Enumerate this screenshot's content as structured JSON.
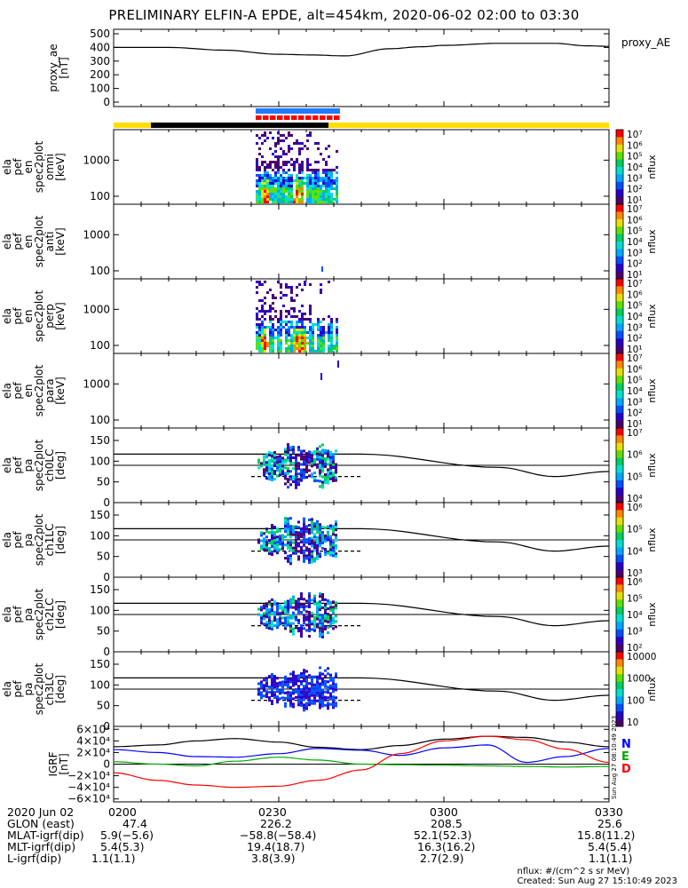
{
  "title": "PRELIMINARY ELFIN-A EPDE, alt=454km, 2020-06-02 02:00 to 03:30",
  "chart_data": [
    {
      "type": "line",
      "id": "proxy_ae",
      "ylabel": [
        "proxy_ae",
        "[nT]"
      ],
      "legend": "proxy_AE",
      "yticks": [
        "500",
        "400",
        "300",
        "200",
        "100",
        "0"
      ],
      "ylim": [
        0,
        520
      ],
      "x_minutes": [
        0,
        10,
        20,
        30,
        36,
        42,
        50,
        56,
        60,
        70,
        80,
        86,
        90
      ],
      "values": [
        400,
        400,
        380,
        350,
        345,
        338,
        390,
        405,
        415,
        430,
        430,
        412,
        408
      ]
    },
    {
      "type": "heatmap",
      "id": "pef_en_spec2plot_omni",
      "ylabel": [
        "ela",
        "pef",
        "en",
        "spec2plot",
        "omni",
        "[keV]"
      ],
      "yticks": [
        "1000",
        "100"
      ],
      "ylim": [
        60,
        7000
      ],
      "colorbar_ticks": [
        "10⁷",
        "10⁶",
        "10⁵",
        "10⁴",
        "10³",
        "10²",
        "10¹"
      ],
      "colorbar_label": "nflux"
    },
    {
      "type": "heatmap",
      "id": "pef_en_spec2plot_anti",
      "ylabel": [
        "ela",
        "pef",
        "en",
        "spec2plot",
        "anti",
        "[keV]"
      ],
      "yticks": [
        "1000",
        "100"
      ],
      "ylim": [
        60,
        7000
      ],
      "colorbar_ticks": [
        "10⁷",
        "10⁶",
        "10⁵",
        "10⁴",
        "10³",
        "10²",
        "10¹"
      ],
      "colorbar_label": "nflux"
    },
    {
      "type": "heatmap",
      "id": "pef_en_spec2plot_perp",
      "ylabel": [
        "ela",
        "pef",
        "en",
        "spec2plot",
        "perp",
        "[keV]"
      ],
      "yticks": [
        "1000",
        "100"
      ],
      "ylim": [
        60,
        7000
      ],
      "colorbar_ticks": [
        "10⁷",
        "10⁶",
        "10⁵",
        "10⁴",
        "10³",
        "10²",
        "10¹"
      ],
      "colorbar_label": "nflux"
    },
    {
      "type": "heatmap",
      "id": "pef_en_spec2plot_para",
      "ylabel": [
        "ela",
        "pef",
        "en",
        "spec2plot",
        "para",
        "[keV]"
      ],
      "yticks": [
        "1000",
        "100"
      ],
      "ylim": [
        60,
        7000
      ],
      "colorbar_ticks": [
        "10⁷",
        "10⁶",
        "10⁵",
        "10⁴",
        "10³",
        "10²",
        "10¹"
      ],
      "colorbar_label": "nflux"
    },
    {
      "type": "heatmap",
      "id": "pef_pa_spec2plot_ch0LC",
      "ylabel": [
        "ela",
        "pef",
        "pa",
        "spec2plot",
        "ch0LC",
        "[deg]"
      ],
      "yticks": [
        "150",
        "100",
        "50",
        "0"
      ],
      "ylim": [
        0,
        180
      ],
      "colorbar_ticks": [
        "10⁷",
        "10⁶",
        "10⁵",
        "10⁴"
      ],
      "colorbar_label": "nflux",
      "lc_x_minutes": [
        0,
        10,
        30,
        45,
        70,
        80,
        90
      ],
      "lc_values": [
        117,
        117,
        117,
        117,
        85,
        63,
        75
      ]
    },
    {
      "type": "heatmap",
      "id": "pef_pa_spec2plot_ch1LC",
      "ylabel": [
        "ela",
        "pef",
        "pa",
        "spec2plot",
        "ch1LC",
        "[deg]"
      ],
      "yticks": [
        "150",
        "100",
        "50",
        "0"
      ],
      "ylim": [
        0,
        180
      ],
      "colorbar_ticks": [
        "10⁶",
        "10⁵",
        "10⁴",
        "10³"
      ],
      "colorbar_label": "nflux"
    },
    {
      "type": "heatmap",
      "id": "pef_pa_spec2plot_ch2LC",
      "ylabel": [
        "ela",
        "pef",
        "pa",
        "spec2plot",
        "ch2LC",
        "[deg]"
      ],
      "yticks": [
        "150",
        "100",
        "50",
        "0"
      ],
      "ylim": [
        0,
        180
      ],
      "colorbar_ticks": [
        "10⁶",
        "10⁵",
        "10⁴",
        "10³",
        "10²"
      ],
      "colorbar_label": "nflux"
    },
    {
      "type": "heatmap",
      "id": "pef_pa_spec2plot_ch3LC",
      "ylabel": [
        "ela",
        "pef",
        "pa",
        "spec2plot",
        "ch3LC",
        "[deg]"
      ],
      "yticks": [
        "150",
        "100",
        "50",
        "0"
      ],
      "ylim": [
        0,
        180
      ],
      "colorbar_ticks": [
        "10000",
        "1000",
        "100",
        "10"
      ],
      "colorbar_label": "nflux"
    },
    {
      "type": "line",
      "id": "igrf",
      "ylabel": [
        "IGRF",
        "[nT]"
      ],
      "yticks": [
        "6×10⁴",
        "4×10⁴",
        "2×10⁴",
        "0",
        "−2×10⁴",
        "−4×10⁴",
        "−6×10⁴"
      ],
      "ylim": [
        -65000,
        65000
      ],
      "legend": [
        "N",
        "E",
        "D"
      ],
      "legend_colors": [
        "#0000ff",
        "#00aa00",
        "#ff0000"
      ],
      "stamp": "Sun Aug 27 08:10:49 2023",
      "series": [
        {
          "name": "total",
          "color": "#000000",
          "x_minutes": [
            0,
            8,
            15,
            22,
            30,
            37,
            45,
            52,
            60,
            68,
            75,
            82,
            90
          ],
          "values": [
            30000,
            33000,
            40000,
            44000,
            38000,
            29000,
            25000,
            32000,
            43000,
            48000,
            46000,
            38000,
            30000
          ]
        },
        {
          "name": "N",
          "color": "#0000ff",
          "x_minutes": [
            0,
            8,
            15,
            22,
            30,
            37,
            45,
            52,
            60,
            68,
            75,
            82,
            90
          ],
          "values": [
            25000,
            20000,
            13000,
            12000,
            18000,
            27000,
            24000,
            15000,
            28000,
            33000,
            3000,
            13000,
            27000
          ]
        },
        {
          "name": "E",
          "color": "#00aa00",
          "x_minutes": [
            0,
            8,
            15,
            22,
            30,
            37,
            45,
            52,
            60,
            68,
            75,
            82,
            90
          ],
          "values": [
            4000,
            0,
            -3000,
            5000,
            12000,
            7000,
            0,
            -1000,
            -2000,
            -3000,
            -4000,
            -5000,
            -4000
          ]
        },
        {
          "name": "D",
          "color": "#ff0000",
          "x_minutes": [
            0,
            8,
            15,
            22,
            30,
            37,
            45,
            52,
            60,
            68,
            75,
            82,
            90
          ],
          "values": [
            -15000,
            -28000,
            -36000,
            -40000,
            -38000,
            -28000,
            -10000,
            18000,
            40000,
            48000,
            42000,
            26000,
            3000
          ]
        }
      ]
    }
  ],
  "x_axis": {
    "rows": [
      {
        "label": "2020 Jun 02",
        "values": [
          "0200",
          "0230",
          "0300",
          "0330"
        ]
      },
      {
        "label": "GLON (east)",
        "values": [
          "47.4",
          "226.2",
          "208.5",
          "25.6"
        ]
      },
      {
        "label": "MLAT-igrf(dip)",
        "values": [
          "5.9(−5.6)",
          "−58.8(−58.4)",
          "52.1(52.3)",
          "15.8(11.2)"
        ]
      },
      {
        "label": "MLT-igrf(dip)",
        "values": [
          "5.4(5.3)",
          "19.4(18.7)",
          "16.3(16.2)",
          "5.4(5.4)"
        ]
      },
      {
        "label": "L-igrf(dip)",
        "values": [
          "1.1(1.1)",
          "3.8(3.9)",
          "2.7(2.9)",
          "1.1(1.1)"
        ]
      }
    ]
  },
  "status_bars": {
    "colors": {
      "blue": "#1e7bff",
      "red": "#ff0000",
      "yellow": "#ffdd00",
      "black": "#000000"
    }
  },
  "credit": {
    "units": "nflux: #/(cm^2 s sr MeV)",
    "created": "Created: Sun Aug 27 15:10:49 2023"
  }
}
